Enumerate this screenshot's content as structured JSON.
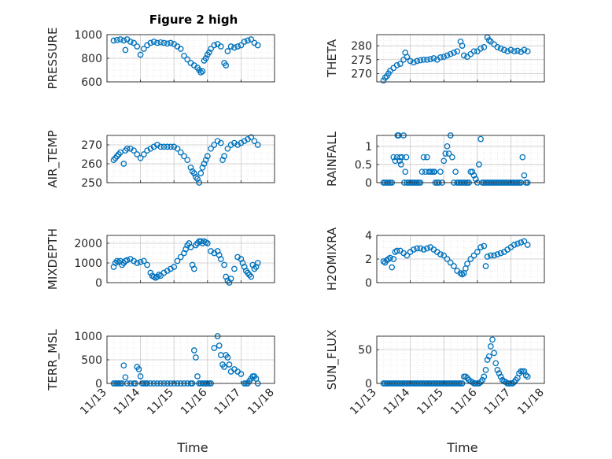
{
  "title": "Figure 2 high",
  "marker_color": "#0072BD",
  "x_axis_label": "Time",
  "x_ticks": [
    "11/13",
    "11/14",
    "11/15",
    "11/16",
    "11/17",
    "11/18"
  ],
  "chart_data": [
    {
      "type": "scatter",
      "id": "pressure",
      "ylabel": "PRESSURE",
      "ylim": [
        600,
        1000
      ],
      "yticks": [
        600,
        800,
        1000
      ],
      "xlim": [
        13,
        18
      ],
      "grid": "minor",
      "x": [
        13.2,
        13.3,
        13.4,
        13.5,
        13.55,
        13.6,
        13.7,
        13.8,
        13.9,
        14.0,
        14.1,
        14.2,
        14.3,
        14.4,
        14.5,
        14.6,
        14.7,
        14.8,
        14.9,
        15.0,
        15.1,
        15.2,
        15.3,
        15.4,
        15.5,
        15.6,
        15.7,
        15.75,
        15.8,
        15.85,
        15.9,
        15.95,
        16.0,
        16.05,
        16.1,
        16.2,
        16.3,
        16.4,
        16.5,
        16.55,
        16.6,
        16.7,
        16.8,
        16.9,
        17.0,
        17.1,
        17.2,
        17.3,
        17.4,
        17.5
      ],
      "y": [
        950,
        955,
        960,
        950,
        870,
        960,
        940,
        930,
        900,
        830,
        880,
        910,
        930,
        940,
        930,
        935,
        930,
        925,
        930,
        920,
        900,
        880,
        820,
        790,
        760,
        740,
        720,
        700,
        680,
        690,
        780,
        800,
        830,
        850,
        880,
        910,
        920,
        900,
        760,
        740,
        860,
        900,
        890,
        900,
        910,
        940,
        950,
        960,
        930,
        910
      ]
    },
    {
      "type": "scatter",
      "id": "theta",
      "ylabel": "THETA",
      "ylim": [
        267,
        284
      ],
      "yticks": [
        270,
        275,
        280
      ],
      "xlim": [
        13,
        18
      ],
      "grid": "minor",
      "x": [
        13.2,
        13.25,
        13.3,
        13.35,
        13.4,
        13.5,
        13.6,
        13.7,
        13.8,
        13.85,
        13.9,
        14.0,
        14.1,
        14.2,
        14.3,
        14.4,
        14.5,
        14.6,
        14.7,
        14.8,
        14.9,
        15.0,
        15.1,
        15.2,
        15.3,
        15.4,
        15.5,
        15.55,
        15.6,
        15.7,
        15.8,
        15.9,
        16.0,
        16.1,
        16.2,
        16.3,
        16.35,
        16.4,
        16.5,
        16.6,
        16.7,
        16.8,
        16.9,
        17.0,
        17.1,
        17.2,
        17.3,
        17.4,
        17.5
      ],
      "y": [
        267.5,
        268.5,
        269,
        270,
        271,
        272,
        273,
        273.5,
        275,
        277.5,
        276,
        274.5,
        274,
        274.5,
        274.8,
        275,
        275,
        275.2,
        275.5,
        275,
        275.8,
        276,
        276.5,
        277,
        277.5,
        278,
        281.5,
        280,
        276.5,
        276,
        277,
        278,
        278,
        279,
        279.5,
        283,
        282,
        281.5,
        280.5,
        279.5,
        279,
        278.5,
        278,
        278.5,
        278,
        278.2,
        277.8,
        278.5,
        278
      ]
    },
    {
      "type": "scatter",
      "id": "air_temp",
      "ylabel": "AIR_TEMP",
      "ylim": [
        250,
        275
      ],
      "yticks": [
        250,
        260,
        270
      ],
      "xlim": [
        13,
        18
      ],
      "grid": "minor",
      "x": [
        13.2,
        13.25,
        13.3,
        13.35,
        13.4,
        13.5,
        13.55,
        13.6,
        13.7,
        13.8,
        13.9,
        14.0,
        14.1,
        14.2,
        14.3,
        14.4,
        14.5,
        14.6,
        14.7,
        14.8,
        14.9,
        15.0,
        15.1,
        15.2,
        15.3,
        15.4,
        15.5,
        15.55,
        15.6,
        15.65,
        15.7,
        15.75,
        15.8,
        15.85,
        15.9,
        15.95,
        16.0,
        16.1,
        16.2,
        16.3,
        16.4,
        16.45,
        16.5,
        16.6,
        16.7,
        16.8,
        16.9,
        17.0,
        17.1,
        17.2,
        17.3,
        17.4,
        17.5
      ],
      "y": [
        262,
        263,
        264,
        265,
        266,
        260,
        267,
        268,
        268,
        267,
        265,
        263,
        265,
        267,
        268,
        269,
        270,
        269,
        269,
        269,
        269,
        269,
        268,
        266,
        264,
        262,
        258,
        256,
        255,
        253,
        252,
        250,
        255,
        258,
        260,
        262,
        264,
        268,
        270,
        272,
        271,
        262,
        264,
        268,
        270,
        271,
        270,
        271,
        272,
        273,
        274,
        272,
        270
      ]
    },
    {
      "type": "scatter",
      "id": "rainfall",
      "ylabel": "RAINFALL",
      "ylim": [
        0,
        1.3
      ],
      "yticks": [
        0,
        0.5,
        1
      ],
      "xlim": [
        13,
        18
      ],
      "grid": "minor",
      "x": [
        13.2,
        13.25,
        13.3,
        13.35,
        13.4,
        13.45,
        13.5,
        13.55,
        13.6,
        13.62,
        13.65,
        13.68,
        13.7,
        13.72,
        13.75,
        13.8,
        13.82,
        13.85,
        13.88,
        13.9,
        13.95,
        14.0,
        14.05,
        14.1,
        14.15,
        14.2,
        14.25,
        14.3,
        14.35,
        14.4,
        14.45,
        14.5,
        14.55,
        14.6,
        14.65,
        14.7,
        14.72,
        14.75,
        14.8,
        14.85,
        14.9,
        14.95,
        15.0,
        15.05,
        15.1,
        15.15,
        15.2,
        15.25,
        15.3,
        15.35,
        15.4,
        15.45,
        15.5,
        15.55,
        15.6,
        15.65,
        15.7,
        15.75,
        15.8,
        15.85,
        15.9,
        15.95,
        16.0,
        16.05,
        16.1,
        16.15,
        16.2,
        16.25,
        16.3,
        16.35,
        16.4,
        16.45,
        16.5,
        16.55,
        16.6,
        16.65,
        16.7,
        16.75,
        16.8,
        16.85,
        16.9,
        16.95,
        17.0,
        17.05,
        17.1,
        17.15,
        17.2,
        17.25,
        17.3,
        17.35,
        17.4,
        17.45,
        17.5
      ],
      "y": [
        0,
        0,
        0,
        0,
        0,
        0,
        0.7,
        0.6,
        0.7,
        1.3,
        1.3,
        0.6,
        0.7,
        0.5,
        0.7,
        1.3,
        0,
        0.3,
        0.7,
        0,
        0,
        0,
        0,
        0,
        0,
        0,
        0,
        0,
        0.3,
        0.7,
        0.3,
        0.7,
        0.3,
        0.3,
        0.3,
        0.3,
        0.3,
        0,
        0,
        0,
        0.3,
        0,
        0.6,
        0.8,
        1.0,
        0.8,
        1.3,
        0.7,
        0,
        0.3,
        0,
        0,
        0,
        0,
        0,
        0,
        0,
        0,
        0.3,
        0.3,
        0.2,
        0.1,
        0,
        0.5,
        1.2,
        0,
        0,
        0,
        0,
        0,
        0,
        0,
        0,
        0,
        0,
        0,
        0,
        0,
        0,
        0,
        0,
        0,
        0,
        0,
        0,
        0,
        0,
        0,
        0,
        0.7,
        0.2,
        0,
        0
      ]
    },
    {
      "type": "scatter",
      "id": "mixdepth",
      "ylabel": "MIXDEPTH",
      "ylim": [
        0,
        2400
      ],
      "yticks": [
        0,
        1000,
        2000
      ],
      "xlim": [
        13,
        18
      ],
      "grid": "minor",
      "x": [
        13.2,
        13.25,
        13.3,
        13.35,
        13.4,
        13.45,
        13.5,
        13.55,
        13.6,
        13.7,
        13.8,
        13.9,
        14.0,
        14.1,
        14.2,
        14.3,
        14.35,
        14.4,
        14.45,
        14.5,
        14.55,
        14.6,
        14.7,
        14.8,
        14.9,
        15.0,
        15.1,
        15.2,
        15.3,
        15.35,
        15.4,
        15.45,
        15.5,
        15.55,
        15.6,
        15.65,
        15.7,
        15.75,
        15.8,
        15.85,
        15.9,
        15.95,
        16.0,
        16.1,
        16.2,
        16.3,
        16.35,
        16.4,
        16.5,
        16.55,
        16.6,
        16.65,
        16.7,
        16.8,
        16.9,
        17.0,
        17.05,
        17.1,
        17.15,
        17.2,
        17.25,
        17.3,
        17.35,
        17.4,
        17.45,
        17.5
      ],
      "y": [
        800,
        1000,
        1100,
        1050,
        1100,
        900,
        1000,
        1100,
        1150,
        1200,
        1100,
        1000,
        1050,
        1100,
        900,
        500,
        350,
        300,
        250,
        300,
        400,
        350,
        500,
        600,
        700,
        800,
        1100,
        1300,
        1500,
        1700,
        1900,
        2000,
        1800,
        900,
        700,
        1900,
        2000,
        2100,
        2100,
        2000,
        2100,
        2050,
        2000,
        1600,
        1500,
        1600,
        1400,
        1200,
        900,
        300,
        100,
        0,
        200,
        700,
        1300,
        1200,
        1000,
        800,
        600,
        500,
        400,
        300,
        900,
        700,
        800,
        1000
      ]
    },
    {
      "type": "scatter",
      "id": "h2omixra",
      "ylabel": "H2OMIXRA",
      "ylim": [
        0,
        4
      ],
      "yticks": [
        0,
        2,
        4
      ],
      "xlim": [
        13,
        18
      ],
      "grid": "minor",
      "x": [
        13.2,
        13.25,
        13.3,
        13.35,
        13.4,
        13.45,
        13.5,
        13.55,
        13.6,
        13.7,
        13.8,
        13.9,
        14.0,
        14.1,
        14.2,
        14.3,
        14.4,
        14.5,
        14.6,
        14.7,
        14.8,
        14.9,
        15.0,
        15.1,
        15.2,
        15.3,
        15.4,
        15.5,
        15.55,
        15.6,
        15.65,
        15.7,
        15.8,
        15.9,
        16.0,
        16.1,
        16.2,
        16.25,
        16.3,
        16.4,
        16.5,
        16.6,
        16.7,
        16.8,
        16.9,
        17.0,
        17.1,
        17.2,
        17.3,
        17.4,
        17.5
      ],
      "y": [
        1.8,
        1.7,
        1.9,
        2.0,
        2.1,
        1.3,
        2.0,
        2.6,
        2.7,
        2.7,
        2.5,
        2.3,
        2.6,
        2.8,
        2.9,
        2.9,
        2.8,
        2.9,
        3.0,
        2.8,
        2.6,
        2.4,
        2.3,
        2.0,
        1.7,
        1.4,
        1.0,
        0.8,
        0.7,
        0.8,
        1.2,
        1.6,
        2.0,
        2.3,
        2.6,
        3.0,
        3.1,
        1.4,
        2.2,
        2.3,
        2.3,
        2.4,
        2.5,
        2.6,
        2.8,
        3.0,
        3.2,
        3.3,
        3.4,
        3.5,
        3.2
      ]
    },
    {
      "type": "scatter",
      "id": "terr_msl",
      "ylabel": "TERR_MSL",
      "ylim": [
        0,
        1000
      ],
      "yticks": [
        0,
        500,
        1000
      ],
      "xlim": [
        13,
        18
      ],
      "grid": "minor",
      "x": [
        13.2,
        13.25,
        13.3,
        13.35,
        13.4,
        13.45,
        13.5,
        13.55,
        13.6,
        13.7,
        13.8,
        13.85,
        13.9,
        13.95,
        14.0,
        14.05,
        14.1,
        14.15,
        14.2,
        14.3,
        14.4,
        14.5,
        14.6,
        14.7,
        14.8,
        14.9,
        15.0,
        15.1,
        15.2,
        15.3,
        15.4,
        15.5,
        15.55,
        15.6,
        15.65,
        15.7,
        15.75,
        15.8,
        15.85,
        15.9,
        15.95,
        16.0,
        16.05,
        16.1,
        16.2,
        16.3,
        16.35,
        16.4,
        16.45,
        16.5,
        16.55,
        16.6,
        16.65,
        16.7,
        16.8,
        16.9,
        17.0,
        17.1,
        17.15,
        17.2,
        17.25,
        17.3,
        17.35,
        17.4,
        17.45,
        17.5
      ],
      "y": [
        0,
        0,
        0,
        0,
        0,
        0,
        380,
        130,
        0,
        0,
        0,
        0,
        350,
        300,
        150,
        0,
        0,
        0,
        0,
        0,
        0,
        0,
        0,
        0,
        0,
        0,
        0,
        0,
        0,
        0,
        0,
        0,
        0,
        700,
        550,
        150,
        0,
        0,
        0,
        0,
        0,
        0,
        0,
        0,
        750,
        1000,
        800,
        600,
        400,
        350,
        600,
        550,
        400,
        250,
        300,
        250,
        200,
        0,
        0,
        0,
        50,
        100,
        150,
        150,
        100,
        0
      ]
    },
    {
      "type": "scatter",
      "id": "sun_flux",
      "ylabel": "SUN_FLUX",
      "ylim": [
        0,
        70
      ],
      "yticks": [
        0,
        50
      ],
      "xlim": [
        13,
        18
      ],
      "grid": "minor",
      "x": [
        13.2,
        13.25,
        13.3,
        13.35,
        13.4,
        13.45,
        13.5,
        13.55,
        13.6,
        13.65,
        13.7,
        13.75,
        13.8,
        13.85,
        13.9,
        13.95,
        14.0,
        14.05,
        14.1,
        14.15,
        14.2,
        14.25,
        14.3,
        14.35,
        14.4,
        14.45,
        14.5,
        14.55,
        14.6,
        14.65,
        14.7,
        14.75,
        14.8,
        14.85,
        14.9,
        14.95,
        15.0,
        15.05,
        15.1,
        15.15,
        15.2,
        15.25,
        15.3,
        15.35,
        15.4,
        15.45,
        15.5,
        15.55,
        15.6,
        15.65,
        15.7,
        15.75,
        15.8,
        15.85,
        15.9,
        15.95,
        16.0,
        16.05,
        16.1,
        16.15,
        16.2,
        16.25,
        16.3,
        16.35,
        16.4,
        16.45,
        16.5,
        16.55,
        16.6,
        16.65,
        16.7,
        16.75,
        16.8,
        16.85,
        16.9,
        16.95,
        17.0,
        17.05,
        17.1,
        17.15,
        17.2,
        17.25,
        17.3,
        17.35,
        17.4,
        17.45,
        17.5
      ],
      "y": [
        0,
        0,
        0,
        0,
        0,
        0,
        0,
        0,
        0,
        0,
        0,
        0,
        0,
        0,
        0,
        0,
        0,
        0,
        0,
        0,
        0,
        0,
        0,
        0,
        0,
        0,
        0,
        0,
        0,
        0,
        0,
        0,
        0,
        0,
        0,
        0,
        0,
        0,
        0,
        0,
        0,
        0,
        0,
        0,
        0,
        0,
        0,
        0,
        10,
        10,
        8,
        5,
        3,
        2,
        0,
        0,
        0,
        0,
        2,
        5,
        10,
        20,
        35,
        40,
        55,
        65,
        45,
        30,
        20,
        15,
        10,
        5,
        3,
        2,
        0,
        0,
        0,
        0,
        2,
        5,
        8,
        15,
        18,
        18,
        18,
        12,
        10
      ]
    }
  ]
}
